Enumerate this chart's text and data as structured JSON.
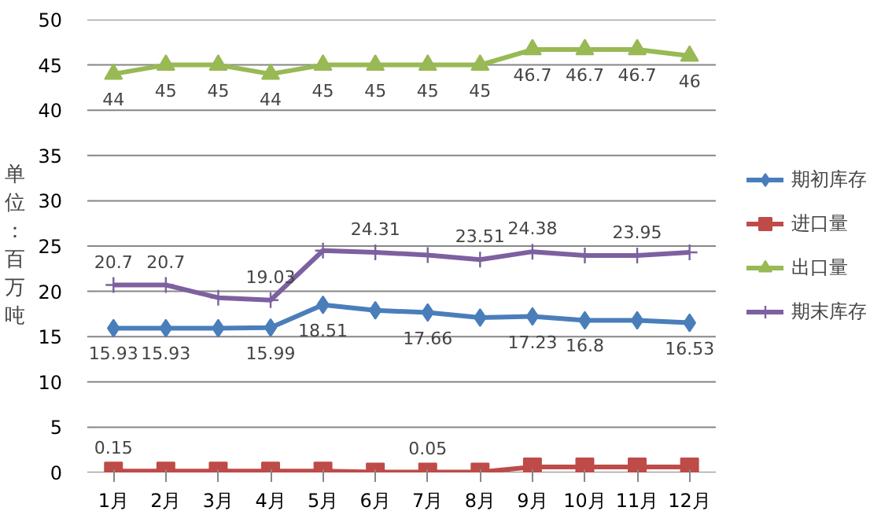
{
  "chart_data": {
    "type": "line",
    "ylabel": "单位：百万吨",
    "categories": [
      "1月",
      "2月",
      "3月",
      "4月",
      "5月",
      "6月",
      "7月",
      "8月",
      "9月",
      "10月",
      "11月",
      "12月"
    ],
    "series": [
      {
        "name": "期初库存",
        "color": "#4a7ebb",
        "marker": "diamond",
        "values": [
          15.93,
          15.93,
          15.93,
          15.99,
          18.51,
          17.9,
          17.66,
          17.1,
          17.23,
          16.8,
          16.8,
          16.53
        ],
        "value_labels": [
          "15.93",
          "15.93",
          null,
          "15.99",
          "18.51",
          null,
          "17.66",
          null,
          "17.23",
          "16.8",
          null,
          "16.53"
        ]
      },
      {
        "name": "进口量",
        "color": "#be4b48",
        "marker": "square",
        "values": [
          0.15,
          0.15,
          0.15,
          0.15,
          0.15,
          0.05,
          0.05,
          0.05,
          0.6,
          0.6,
          0.6,
          0.6
        ],
        "value_labels": [
          "0.15",
          null,
          null,
          null,
          null,
          null,
          "0.05",
          null,
          null,
          null,
          null,
          null
        ]
      },
      {
        "name": "出口量",
        "color": "#98b954",
        "marker": "triangle",
        "values": [
          44,
          45,
          45,
          44,
          45,
          45,
          45,
          45,
          46.7,
          46.7,
          46.7,
          46
        ],
        "value_labels": [
          "44",
          "45",
          "45",
          "44",
          "45",
          "45",
          "45",
          "45",
          "46.7",
          "46.7",
          "46.7",
          "46"
        ]
      },
      {
        "name": "期末库存",
        "color": "#7d60a0",
        "marker": "cross",
        "values": [
          20.7,
          20.7,
          19.3,
          19.03,
          24.5,
          24.31,
          24.0,
          23.51,
          24.38,
          23.95,
          23.95,
          24.3
        ],
        "value_labels": [
          "20.7",
          "20.7",
          null,
          "19.03",
          null,
          "24.31",
          null,
          "23.51",
          "24.38",
          null,
          "23.95",
          null
        ]
      }
    ],
    "ylim": [
      0,
      50
    ],
    "yticks": [
      0,
      5,
      10,
      15,
      20,
      25,
      30,
      35,
      40,
      45,
      50
    ],
    "grid": "y",
    "legend": "right"
  }
}
